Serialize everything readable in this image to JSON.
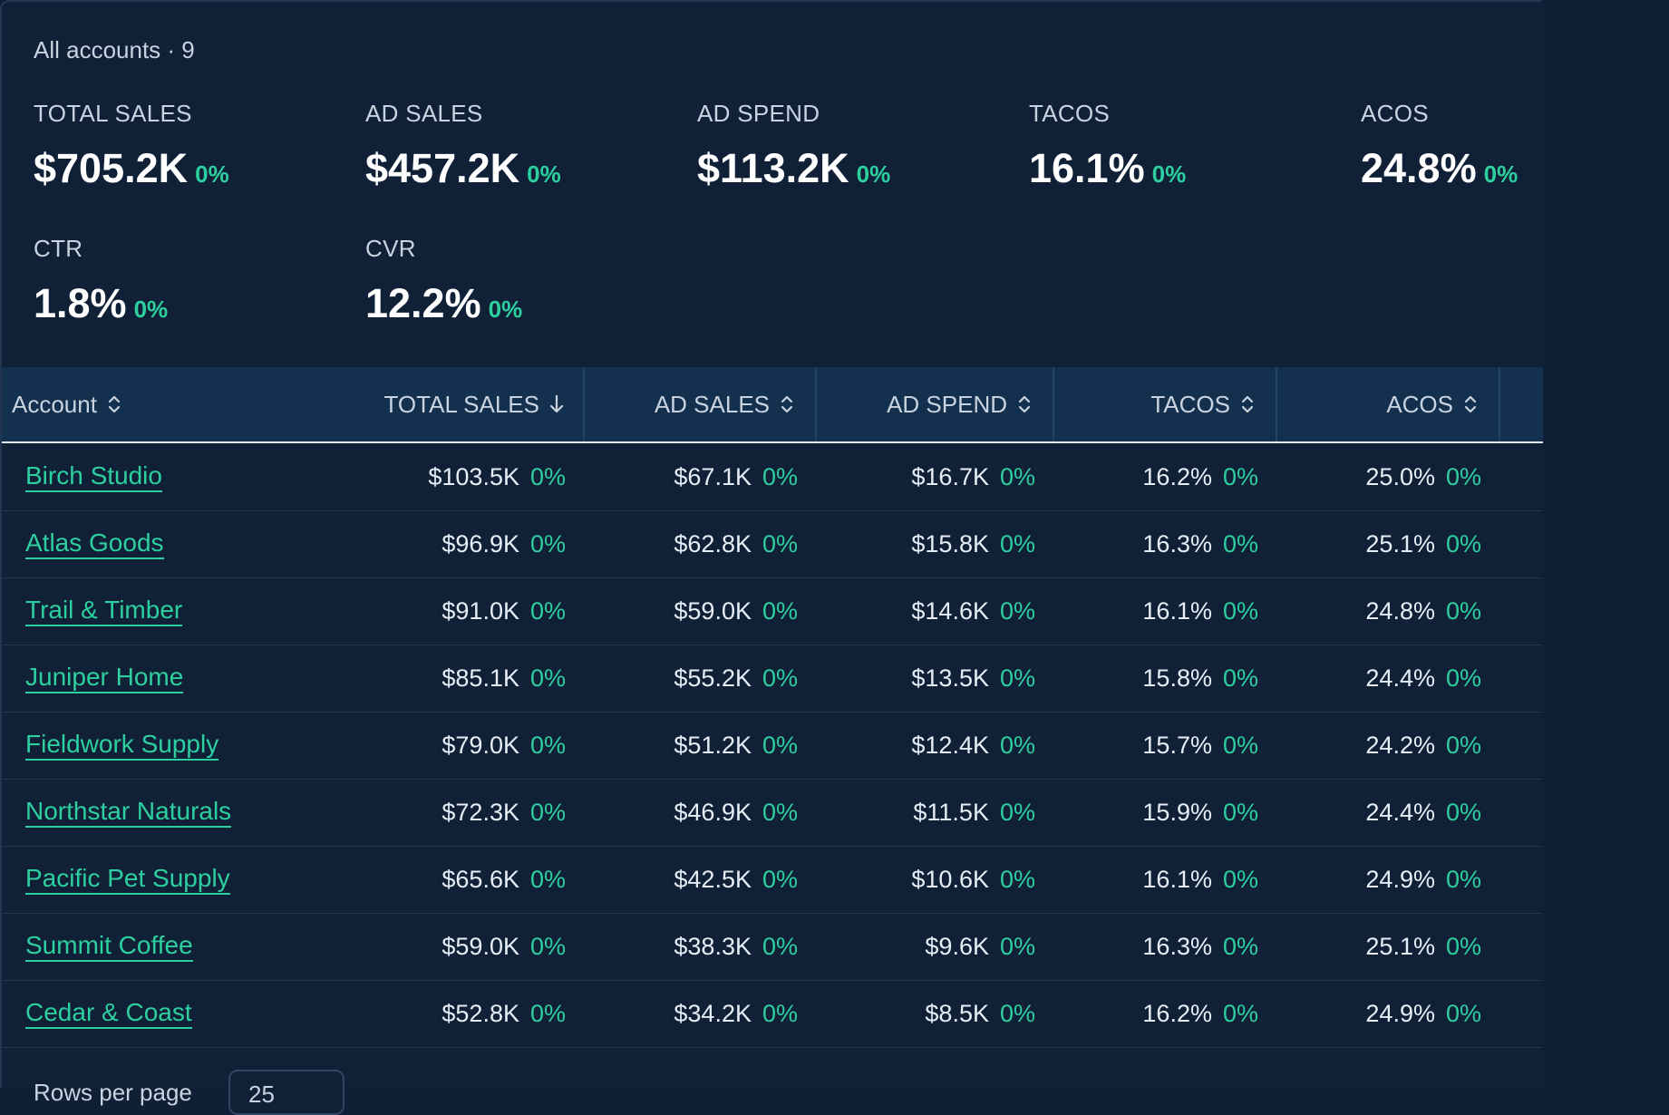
{
  "header": {
    "account_count_label": "All accounts · 9"
  },
  "metrics": [
    {
      "label": "TOTAL SALES",
      "value": "$705.2K",
      "delta": "0%"
    },
    {
      "label": "AD SALES",
      "value": "$457.2K",
      "delta": "0%"
    },
    {
      "label": "AD SPEND",
      "value": "$113.2K",
      "delta": "0%"
    },
    {
      "label": "TACOS",
      "value": "16.1%",
      "delta": "0%"
    },
    {
      "label": "ACOS",
      "value": "24.8%",
      "delta": "0%"
    },
    {
      "label": "CTR",
      "value": "1.8%",
      "delta": "0%"
    },
    {
      "label": "CVR",
      "value": "12.2%",
      "delta": "0%"
    }
  ],
  "table": {
    "columns": [
      "Account",
      "TOTAL SALES",
      "AD SALES",
      "AD SPEND",
      "TACOS",
      "ACOS"
    ],
    "rows": [
      {
        "account": "Birch Studio",
        "total_sales": "$103.5K",
        "ad_sales": "$67.1K",
        "ad_spend": "$16.7K",
        "tacos": "16.2%",
        "acos": "25.0%",
        "delta": "0%"
      },
      {
        "account": "Atlas Goods",
        "total_sales": "$96.9K",
        "ad_sales": "$62.8K",
        "ad_spend": "$15.8K",
        "tacos": "16.3%",
        "acos": "25.1%",
        "delta": "0%"
      },
      {
        "account": "Trail & Timber",
        "total_sales": "$91.0K",
        "ad_sales": "$59.0K",
        "ad_spend": "$14.6K",
        "tacos": "16.1%",
        "acos": "24.8%",
        "delta": "0%"
      },
      {
        "account": "Juniper Home",
        "total_sales": "$85.1K",
        "ad_sales": "$55.2K",
        "ad_spend": "$13.5K",
        "tacos": "15.8%",
        "acos": "24.4%",
        "delta": "0%"
      },
      {
        "account": "Fieldwork Supply",
        "total_sales": "$79.0K",
        "ad_sales": "$51.2K",
        "ad_spend": "$12.4K",
        "tacos": "15.7%",
        "acos": "24.2%",
        "delta": "0%"
      },
      {
        "account": "Northstar Naturals",
        "total_sales": "$72.3K",
        "ad_sales": "$46.9K",
        "ad_spend": "$11.5K",
        "tacos": "15.9%",
        "acos": "24.4%",
        "delta": "0%"
      },
      {
        "account": "Pacific Pet Supply",
        "total_sales": "$65.6K",
        "ad_sales": "$42.5K",
        "ad_spend": "$10.6K",
        "tacos": "16.1%",
        "acos": "24.9%",
        "delta": "0%"
      },
      {
        "account": "Summit Coffee",
        "total_sales": "$59.0K",
        "ad_sales": "$38.3K",
        "ad_spend": "$9.6K",
        "tacos": "16.3%",
        "acos": "25.1%",
        "delta": "0%"
      },
      {
        "account": "Cedar & Coast",
        "total_sales": "$52.8K",
        "ad_sales": "$34.2K",
        "ad_spend": "$8.5K",
        "tacos": "16.2%",
        "acos": "24.9%",
        "delta": "0%"
      }
    ]
  },
  "footer": {
    "rows_per_page_label": "Rows per page",
    "rows_per_page_value": "25"
  },
  "colors": {
    "accent": "#2ecf9e",
    "background": "#0f2037",
    "header_bg": "#13304f"
  }
}
